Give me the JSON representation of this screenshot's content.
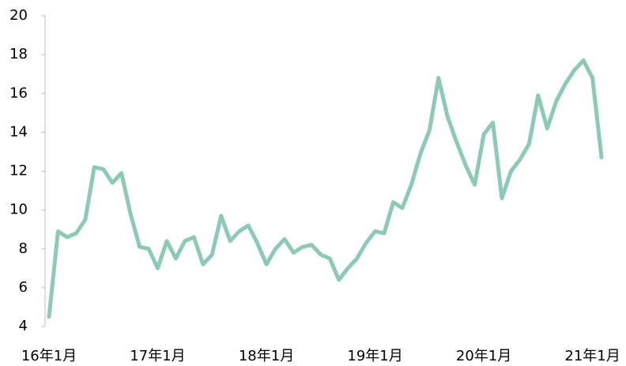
{
  "chart_data": {
    "type": "line",
    "categories": [
      "16年1月",
      null,
      null,
      null,
      null,
      null,
      null,
      null,
      null,
      null,
      null,
      null,
      "17年1月",
      null,
      null,
      null,
      null,
      null,
      null,
      null,
      null,
      null,
      null,
      null,
      "18年1月",
      null,
      null,
      null,
      null,
      null,
      null,
      null,
      null,
      null,
      null,
      null,
      "19年1月",
      null,
      null,
      null,
      null,
      null,
      null,
      null,
      null,
      null,
      null,
      null,
      "20年1月",
      null,
      null,
      null,
      null,
      null,
      null,
      null,
      null,
      null,
      null,
      null,
      "21年1月",
      null
    ],
    "series": [
      {
        "color": "#8ccbb3",
        "values": [
          4.5,
          8.9,
          8.6,
          8.8,
          9.5,
          12.2,
          12.1,
          11.4,
          11.9,
          9.8,
          8.1,
          8.0,
          7.0,
          8.4,
          7.5,
          8.4,
          8.6,
          7.2,
          7.7,
          9.7,
          8.4,
          8.9,
          9.2,
          8.3,
          7.2,
          8.0,
          8.5,
          7.8,
          8.1,
          8.2,
          7.7,
          7.5,
          6.4,
          7.0,
          7.5,
          8.3,
          8.9,
          8.8,
          10.4,
          10.1,
          11.3,
          12.9,
          14.1,
          16.8,
          14.8,
          13.5,
          12.3,
          11.3,
          13.9,
          14.5,
          10.6,
          12.0,
          12.6,
          13.4,
          15.9,
          14.2,
          15.6,
          16.5,
          17.2,
          17.7,
          16.8,
          12.7
        ]
      }
    ],
    "ylim": [
      4,
      20
    ],
    "yticks": [
      4,
      6,
      8,
      10,
      12,
      14,
      16,
      18,
      20
    ]
  }
}
